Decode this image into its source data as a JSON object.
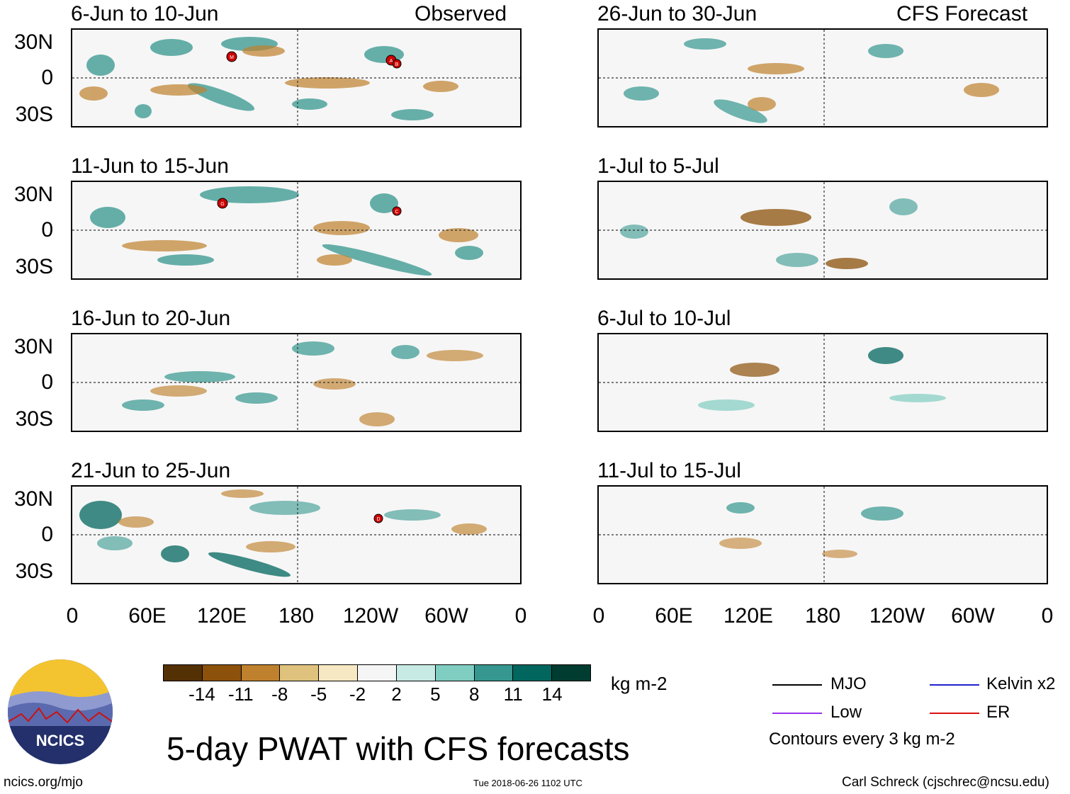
{
  "panels_left": [
    {
      "title": "6-Jun to 10-Jun",
      "label": "Observed"
    },
    {
      "title": "11-Jun to 15-Jun",
      "label": ""
    },
    {
      "title": "16-Jun to 20-Jun",
      "label": ""
    },
    {
      "title": "21-Jun to 25-Jun",
      "label": ""
    }
  ],
  "panels_right": [
    {
      "title": "26-Jun to 30-Jun",
      "label": "CFS Forecast"
    },
    {
      "title": "1-Jul to 5-Jul",
      "label": ""
    },
    {
      "title": "6-Jul to 10-Jul",
      "label": ""
    },
    {
      "title": "11-Jul to 15-Jul",
      "label": ""
    }
  ],
  "lat_labels": [
    "30N",
    "0",
    "30S"
  ],
  "lon_labels": [
    "0",
    "60E",
    "120E",
    "180",
    "120W",
    "60W",
    "0"
  ],
  "storm_markers": {
    "panel1": [
      "M",
      "A",
      "B"
    ],
    "panel2": [
      "G",
      "C"
    ],
    "panel4": [
      "D"
    ]
  },
  "colorbar": {
    "colors": [
      "#543005",
      "#8c510a",
      "#bf812d",
      "#dfc27d",
      "#f6e8c3",
      "#f5f5f5",
      "#c7eae5",
      "#80cdc1",
      "#35978f",
      "#01665e",
      "#003c30"
    ],
    "ticks": [
      "-14",
      "-11",
      "-8",
      "-5",
      "-2",
      "2",
      "5",
      "8",
      "11",
      "14"
    ],
    "units": "kg m-2"
  },
  "legend": {
    "items": [
      {
        "label": "MJO",
        "color": "#000000"
      },
      {
        "label": "Kelvin x2",
        "color": "#2222cc"
      },
      {
        "label": "Low",
        "color": "#9933ee"
      },
      {
        "label": "ER",
        "color": "#dd1111"
      }
    ],
    "note": "Contours every 3 kg m-2"
  },
  "logo_text": "NCICS",
  "main_title": "5-day PWAT with CFS forecasts",
  "footer": {
    "left": "ncics.org/mjo",
    "center": "Tue 2018-06-26 1102 UTC",
    "right": "Carl Schreck (cjschrec@ncsu.edu)"
  }
}
